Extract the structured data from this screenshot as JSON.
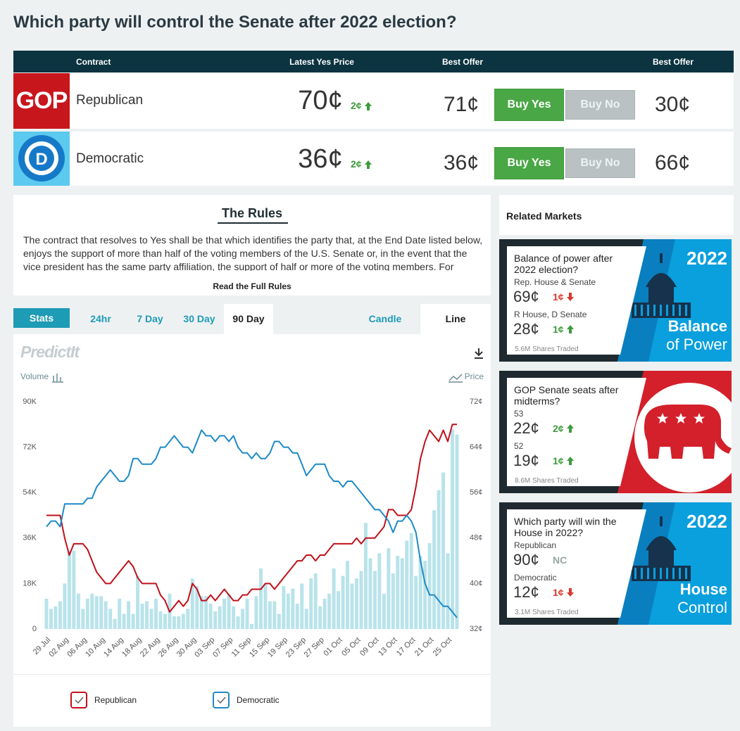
{
  "title": "Which party will control the Senate after 2022 election?",
  "table": {
    "headers": [
      "Contract",
      "Latest Yes Price",
      "Best Offer",
      "Best Offer"
    ],
    "rows": [
      {
        "logo": "GOP",
        "name": "Republican",
        "latest": "70¢",
        "change": "2¢",
        "direction": "up",
        "offer_yes": "71¢",
        "buy_yes": "Buy Yes",
        "buy_no": "Buy No",
        "offer_no": "30¢"
      },
      {
        "logo": "D",
        "name": "Democratic",
        "latest": "36¢",
        "change": "2¢",
        "direction": "up",
        "offer_yes": "36¢",
        "buy_yes": "Buy Yes",
        "buy_no": "Buy No",
        "offer_no": "66¢"
      }
    ]
  },
  "rules": {
    "title": "The Rules",
    "text": "The contract that resolves to Yes shall be that which identifies the party that, at the End Date listed below, enjoys the support of more than half of the voting members of the U.S. Senate or, in the event that the vice president has the same party affiliation, the support of half or more of the voting members. For",
    "link": "Read the Full Rules"
  },
  "tabs": [
    "Stats",
    "24hr",
    "7 Day",
    "30 Day",
    "90 Day",
    "Candle",
    "Line"
  ],
  "chart_data": {
    "type": "combo",
    "logo": "PredictIt",
    "y2label": "Price",
    "categories": [
      "29 Jul",
      null,
      null,
      null,
      "02 Aug",
      null,
      null,
      null,
      "06 Aug",
      null,
      null,
      null,
      "10 Aug",
      null,
      null,
      null,
      "14 Aug",
      null,
      null,
      null,
      "18 Aug",
      null,
      null,
      null,
      "22 Aug",
      null,
      null,
      null,
      "26 Aug",
      null,
      null,
      null,
      "30 Aug",
      null,
      null,
      null,
      "03 Sep",
      null,
      null,
      null,
      "07 Sep",
      null,
      null,
      null,
      "11 Sep",
      null,
      null,
      null,
      "15 Sep",
      null,
      null,
      null,
      "19 Sep",
      null,
      null,
      null,
      "23 Sep",
      null,
      null,
      null,
      "27 Sep",
      null,
      null,
      null,
      "01 Oct",
      null,
      null,
      null,
      "05 Oct",
      null,
      null,
      null,
      "09 Oct",
      null,
      null,
      null,
      "13 Oct",
      null,
      null,
      null,
      "17 Oct",
      null,
      null,
      null,
      "21 Oct",
      null,
      null,
      null,
      "25 Oct",
      null,
      null
    ],
    "ylim": [
      0,
      90000
    ],
    "yticks": [
      0,
      {
        "value": 18000,
        "label": "18K"
      },
      {
        "value": 36000,
        "label": "36K"
      },
      {
        "value": 54000,
        "label": "54K"
      },
      {
        "value": 72000,
        "label": "72K"
      },
      {
        "value": 90000,
        "label": "90K"
      }
    ],
    "y2lim": [
      32,
      72
    ],
    "y2ticks": [
      {
        "value": 32,
        "label": "32¢"
      },
      {
        "value": 40,
        "label": "40¢"
      },
      {
        "value": 48,
        "label": "48¢"
      },
      {
        "value": 56,
        "label": "56¢"
      },
      {
        "value": 64,
        "label": "64¢"
      },
      {
        "value": 72,
        "label": "72¢"
      }
    ],
    "grid": false,
    "series": [
      {
        "name": "Volume",
        "type": "bar",
        "axis": "y",
        "color": "#b9e3ea",
        "values": [
          12000,
          8000,
          9000,
          11000,
          18000,
          31000,
          31000,
          14000,
          8000,
          12000,
          14000,
          13000,
          13000,
          11000,
          8000,
          4000,
          12000,
          6000,
          11000,
          6000,
          21000,
          10000,
          11000,
          8000,
          12000,
          7000,
          6000,
          14000,
          5000,
          5000,
          6000,
          8000,
          20000,
          17000,
          13000,
          13000,
          10000,
          7000,
          9000,
          12000,
          14000,
          9000,
          5000,
          8000,
          12000,
          2000,
          13000,
          24000,
          18000,
          11000,
          11000,
          6000,
          17000,
          14000,
          16000,
          10000,
          18000,
          8000,
          20000,
          22000,
          9000,
          12000,
          14000,
          24000,
          15000,
          21000,
          27000,
          18000,
          20000,
          23000,
          42000,
          28000,
          23000,
          30000,
          14000,
          32000,
          22000,
          29000,
          28000,
          35000,
          38000,
          21000,
          29000,
          27000,
          34000,
          47000,
          55000,
          62000,
          30000,
          79000,
          77000
        ]
      },
      {
        "name": "Republican",
        "type": "line",
        "axis": "y2",
        "color": "#c0111a",
        "values": [
          52,
          52,
          52,
          52,
          48,
          45,
          47,
          47,
          47,
          46,
          44,
          42,
          41,
          40,
          40,
          41,
          42,
          43,
          44,
          43,
          41,
          40,
          40,
          40,
          40,
          38,
          37,
          35,
          36,
          37,
          36,
          37,
          40,
          39,
          37,
          37,
          38,
          37,
          38,
          39,
          38,
          37,
          37,
          38,
          38,
          39,
          39,
          39,
          40,
          40,
          39,
          40,
          41,
          42,
          43,
          44,
          44,
          45,
          45,
          44,
          45,
          45,
          46,
          47,
          47,
          47,
          47,
          47,
          48,
          47,
          48,
          48,
          48,
          49,
          50,
          53,
          53,
          52,
          52,
          52,
          53,
          57,
          62,
          65,
          67,
          66,
          65,
          67,
          65,
          68,
          68
        ]
      },
      {
        "name": "Democratic",
        "type": "line",
        "axis": "y2",
        "color": "#1d8ac7",
        "values": [
          50,
          51,
          51,
          50,
          54,
          54,
          54,
          54,
          54,
          55,
          55,
          57,
          58,
          59,
          60,
          59,
          58,
          58,
          59,
          62,
          62,
          61,
          61,
          61,
          62,
          64,
          64,
          65,
          66,
          65,
          64,
          64,
          63,
          65,
          67,
          66,
          66,
          65,
          66,
          66,
          65,
          66,
          64,
          63,
          63,
          62,
          63,
          62,
          62,
          63,
          65,
          65,
          64,
          64,
          63,
          63,
          61,
          59,
          60,
          61,
          61,
          61,
          59,
          58,
          58,
          57,
          58,
          58,
          57,
          56,
          55,
          54,
          53,
          53,
          52,
          51,
          49,
          51,
          51,
          52,
          51,
          49,
          44,
          40,
          38,
          38,
          37,
          36,
          36,
          35,
          34
        ]
      }
    ]
  },
  "related": {
    "title": "Related Markets",
    "markets": [
      {
        "question": "Balance of power after 2022 election?",
        "contracts": [
          {
            "name": "Rep. House & Senate",
            "price": "69¢",
            "change": "1¢",
            "direction": "down"
          },
          {
            "name": "R House, D Senate",
            "price": "28¢",
            "change": "1¢",
            "direction": "up"
          }
        ],
        "shares": "5.6M Shares Traded",
        "theme": "capitol",
        "banner": [
          "2022",
          "Balance",
          "of Power"
        ]
      },
      {
        "question": "GOP Senate seats after midterms?",
        "contracts": [
          {
            "name": "53",
            "price": "22¢",
            "change": "2¢",
            "direction": "up"
          },
          {
            "name": "52",
            "price": "19¢",
            "change": "1¢",
            "direction": "up"
          }
        ],
        "shares": "8.6M Shares Traded",
        "theme": "elephant",
        "banner": []
      },
      {
        "question": "Which party will win the House in 2022?",
        "contracts": [
          {
            "name": "Republican",
            "price": "90¢",
            "change": "NC",
            "direction": "none"
          },
          {
            "name": "Democratic",
            "price": "12¢",
            "change": "1¢",
            "direction": "down"
          }
        ],
        "shares": "3.1M Shares Traded",
        "theme": "capitol",
        "banner": [
          "2022",
          "House",
          "Control"
        ]
      }
    ]
  }
}
